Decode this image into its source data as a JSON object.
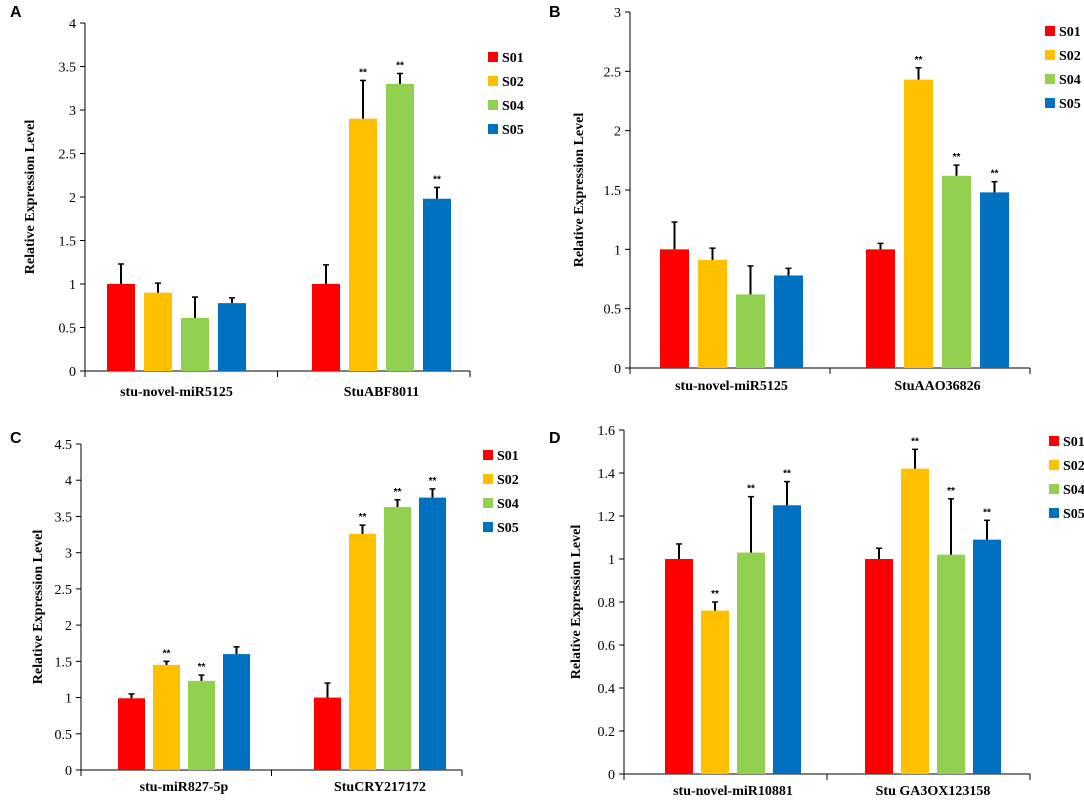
{
  "colors": {
    "S01": "#ff0000",
    "S02": "#ffc000",
    "S04": "#92d050",
    "S05": "#0070c0"
  },
  "chart_data": [
    {
      "panel": "A",
      "type": "bar",
      "ylabel": "Relative Expression Level",
      "ylim": [
        0,
        4
      ],
      "yticks": [
        0,
        0.5,
        1,
        1.5,
        2,
        2.5,
        3,
        3.5,
        4
      ],
      "ytick_labels": [
        "0",
        "0.5",
        "1",
        "1.5",
        "2",
        "2.5",
        "3",
        "3.5",
        "4"
      ],
      "categories": [
        "stu-novel-miR5125",
        "StuABF8011"
      ],
      "legend": [
        "S01",
        "S02",
        "S04",
        "S05"
      ],
      "legend_position": "right",
      "series": [
        {
          "name": "S01",
          "values": [
            1.0,
            1.0
          ],
          "errors": [
            0.23,
            0.22
          ],
          "sig": [
            "",
            ""
          ]
        },
        {
          "name": "S02",
          "values": [
            0.9,
            2.9
          ],
          "errors": [
            0.11,
            0.44
          ],
          "sig": [
            "",
            "**"
          ]
        },
        {
          "name": "S04",
          "values": [
            0.61,
            3.3
          ],
          "errors": [
            0.24,
            0.12
          ],
          "sig": [
            "",
            "**"
          ]
        },
        {
          "name": "S05",
          "values": [
            0.78,
            1.98
          ],
          "errors": [
            0.06,
            0.13
          ],
          "sig": [
            "",
            "**"
          ]
        }
      ]
    },
    {
      "panel": "B",
      "type": "bar",
      "ylabel": "Relative Expression Level",
      "ylim": [
        0,
        3
      ],
      "yticks": [
        0,
        0.5,
        1,
        1.5,
        2,
        2.5,
        3
      ],
      "ytick_labels": [
        "0",
        "0.5",
        "1",
        "1.5",
        "2",
        "2.5",
        "3"
      ],
      "categories": [
        "stu-novel-miR5125",
        "StuAAO36826"
      ],
      "legend": [
        "S01",
        "S02",
        "S04",
        "S05"
      ],
      "legend_position": "top-right",
      "series": [
        {
          "name": "S01",
          "values": [
            1.0,
            1.0
          ],
          "errors": [
            0.23,
            0.05
          ],
          "sig": [
            "",
            ""
          ]
        },
        {
          "name": "S02",
          "values": [
            0.91,
            2.43
          ],
          "errors": [
            0.1,
            0.1
          ],
          "sig": [
            "",
            "**"
          ]
        },
        {
          "name": "S04",
          "values": [
            0.62,
            1.62
          ],
          "errors": [
            0.24,
            0.09
          ],
          "sig": [
            "",
            "**"
          ]
        },
        {
          "name": "S05",
          "values": [
            0.78,
            1.48
          ],
          "errors": [
            0.06,
            0.09
          ],
          "sig": [
            "",
            "**"
          ]
        }
      ]
    },
    {
      "panel": "C",
      "type": "bar",
      "ylabel": "Relative Expression Level",
      "ylim": [
        0,
        4.5
      ],
      "yticks": [
        0,
        0.5,
        1,
        1.5,
        2,
        2.5,
        3,
        3.5,
        4,
        4.5
      ],
      "ytick_labels": [
        "0",
        "0.5",
        "1",
        "1.5",
        "2",
        "2.5",
        "3",
        "3.5",
        "4",
        "4.5"
      ],
      "categories": [
        "stu-miR827-5p",
        "StuCRY217172"
      ],
      "legend": [
        "S01",
        "S02",
        "S04",
        "S05"
      ],
      "legend_position": "top-right",
      "series": [
        {
          "name": "S01",
          "values": [
            0.99,
            1.0
          ],
          "errors": [
            0.06,
            0.2
          ],
          "sig": [
            "",
            ""
          ]
        },
        {
          "name": "S02",
          "values": [
            1.45,
            3.26
          ],
          "errors": [
            0.05,
            0.12
          ],
          "sig": [
            "**",
            "**"
          ]
        },
        {
          "name": "S04",
          "values": [
            1.23,
            3.63
          ],
          "errors": [
            0.08,
            0.1
          ],
          "sig": [
            "**",
            "**"
          ]
        },
        {
          "name": "S05",
          "values": [
            1.6,
            3.76
          ],
          "errors": [
            0.1,
            0.12
          ],
          "sig": [
            "",
            "**"
          ]
        }
      ]
    },
    {
      "panel": "D",
      "type": "bar",
      "ylabel": "Relative Expression Level",
      "ylim": [
        0,
        1.6
      ],
      "yticks": [
        0,
        0.2,
        0.4,
        0.6,
        0.8,
        1,
        1.2,
        1.4,
        1.6
      ],
      "ytick_labels": [
        "0",
        "0.2",
        "0.4",
        "0.6",
        "0.8",
        "1",
        "1.2",
        "1.4",
        "1.6"
      ],
      "categories": [
        "stu-novel-miR10881",
        "Stu GA3OX123158"
      ],
      "legend": [
        "S01",
        "S02",
        "S04",
        "S05"
      ],
      "legend_position": "top-right",
      "series": [
        {
          "name": "S01",
          "values": [
            1.0,
            1.0
          ],
          "errors": [
            0.07,
            0.05
          ],
          "sig": [
            "",
            ""
          ]
        },
        {
          "name": "S02",
          "values": [
            0.76,
            1.42
          ],
          "errors": [
            0.04,
            0.09
          ],
          "sig": [
            "**",
            "**"
          ]
        },
        {
          "name": "S04",
          "values": [
            1.03,
            1.02
          ],
          "errors": [
            0.26,
            0.26
          ],
          "sig": [
            "**",
            "**"
          ]
        },
        {
          "name": "S05",
          "values": [
            1.25,
            1.09
          ],
          "errors": [
            0.11,
            0.09
          ],
          "sig": [
            "**",
            "**"
          ]
        }
      ]
    }
  ]
}
